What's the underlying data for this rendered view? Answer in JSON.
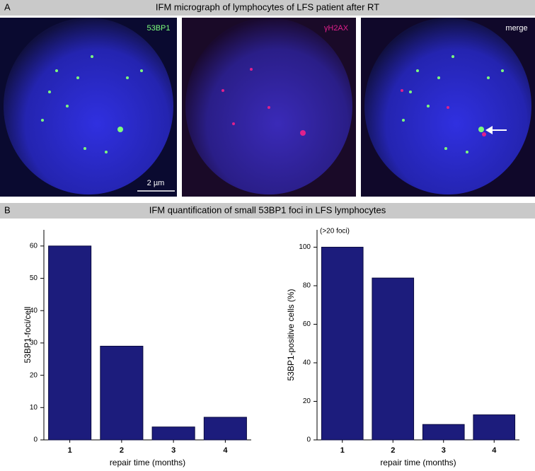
{
  "panels": {
    "a": {
      "label": "A",
      "title": "IFM  micrograph of lymphocytes of LFS patient after RT"
    },
    "b": {
      "label": "B",
      "title": "IFM quantification of small 53BP1 foci in LFS lymphocytes"
    }
  },
  "micrographs": [
    {
      "label": "53BP1"
    },
    {
      "label": "γH2AX"
    },
    {
      "label": "merge"
    }
  ],
  "scale_bar": "2 µm",
  "chart_data": [
    {
      "type": "bar",
      "y_label": "53BP1-foci/cell",
      "x_label": "repair time (months)",
      "categories": [
        "1",
        "2",
        "3",
        "4"
      ],
      "values": [
        60,
        29,
        4,
        7
      ],
      "color": "#1c1c7c",
      "ylim": [
        0,
        65
      ],
      "yticks": [
        0,
        10,
        20,
        30,
        40,
        50,
        60
      ]
    },
    {
      "type": "bar",
      "y_label": "53BP1-positive cells (%)",
      "x_label": "repair time (months)",
      "annotation": "(>20 foci)",
      "categories": [
        "1",
        "2",
        "3",
        "4"
      ],
      "values": [
        100,
        84,
        8,
        13
      ],
      "color": "#1c1c7c",
      "ylim": [
        0,
        109
      ],
      "yticks": [
        0,
        20,
        40,
        60,
        80,
        100
      ]
    }
  ]
}
